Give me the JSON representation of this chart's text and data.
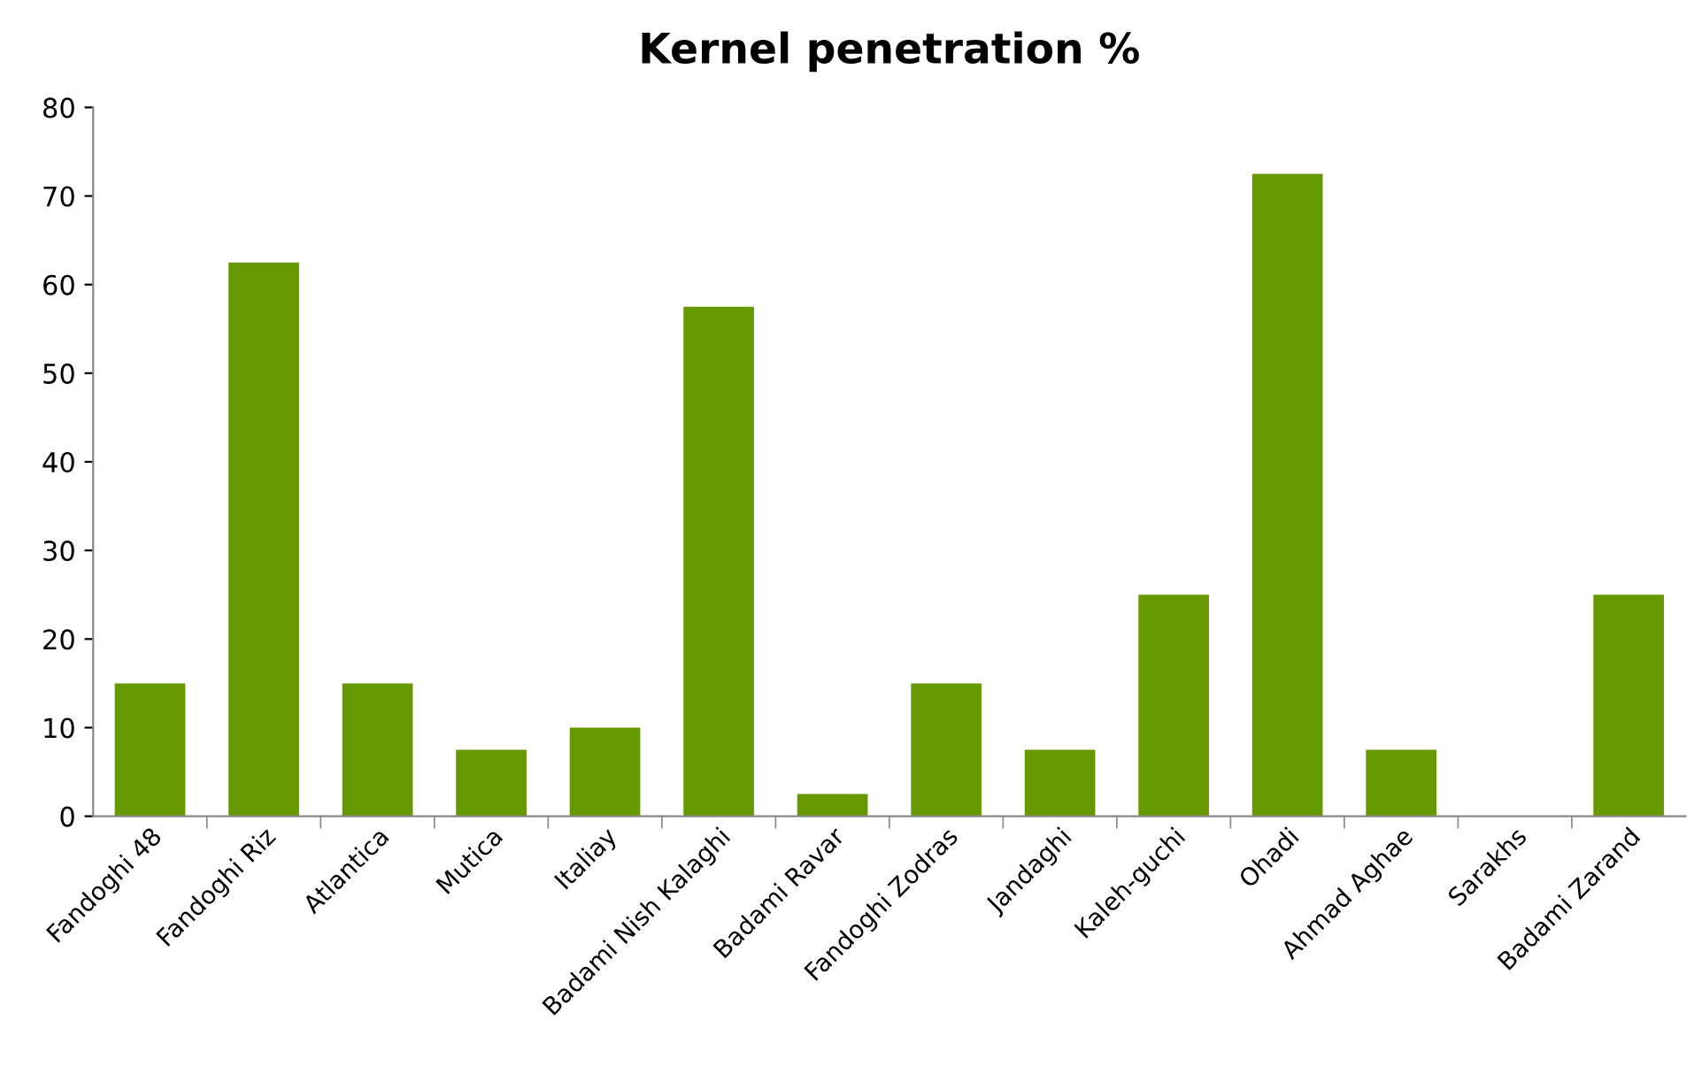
{
  "chart_data": {
    "type": "bar",
    "title": "Kernel penetration %",
    "categories": [
      "Fandoghi 48",
      "Fandoghi Riz",
      "Atlantica",
      "Mutica",
      "Italiay",
      "Badami Nish Kalaghi",
      "Badami Ravar",
      "Fandoghi Zodras",
      "Jandaghi",
      "Kaleh-guchi",
      "Ohadi",
      "Ahmad Aghae",
      "Sarakhs",
      "Badami Zarand"
    ],
    "values": [
      15,
      62.5,
      15,
      7.5,
      10,
      57.5,
      2.5,
      15,
      7.5,
      25,
      72.5,
      7.5,
      0,
      25
    ],
    "color": "#669900",
    "ylim": [
      0,
      80
    ],
    "yticks": [
      0,
      10,
      20,
      30,
      40,
      50,
      60,
      70,
      80
    ],
    "grid": false,
    "legend": false
  }
}
